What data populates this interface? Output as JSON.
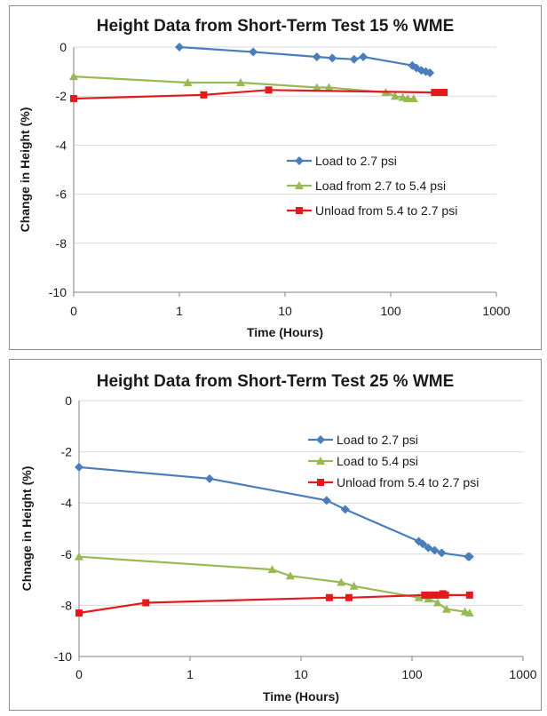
{
  "chart_data": [
    {
      "type": "line",
      "title": "Height Data from Short-Term Test 15 % WME",
      "xlabel": "Time (Hours)",
      "ylabel": "Change in Height (%)",
      "xscale": "log",
      "xlim": [
        0.1,
        1000
      ],
      "ylim": [
        -10,
        0
      ],
      "xticks": [
        0.1,
        1,
        10,
        100,
        1000
      ],
      "xtick_labels": [
        "0",
        "1",
        "10",
        "100",
        "1000"
      ],
      "yticks": [
        0,
        -2,
        -4,
        -6,
        -8,
        -10
      ],
      "ytick_labels": [
        "0",
        "-2",
        "-4",
        "-6",
        "-8",
        "-10"
      ],
      "grid": "horizontal",
      "legend_position": "right-middle",
      "series": [
        {
          "name": "Load to 2.7 psi",
          "color": "#4a7ebb",
          "marker": "diamond",
          "x": [
            1,
            5,
            20,
            28,
            45,
            55,
            160,
            175,
            195,
            215,
            235
          ],
          "y": [
            0,
            -0.2,
            -0.4,
            -0.45,
            -0.5,
            -0.4,
            -0.75,
            -0.85,
            -0.95,
            -1.0,
            -1.05
          ]
        },
        {
          "name": "Load from 2.7 to 5.4 psi",
          "color": "#98b954",
          "marker": "triangle",
          "x": [
            0.1,
            1.2,
            3.8,
            20,
            26,
            90,
            110,
            130,
            145,
            165
          ],
          "y": [
            -1.2,
            -1.45,
            -1.45,
            -1.65,
            -1.65,
            -1.85,
            -2.0,
            -2.05,
            -2.1,
            -2.1
          ]
        },
        {
          "name": "Unload from 5.4 to 2.7 psi",
          "color": "#e31a1c",
          "marker": "square",
          "x": [
            0.1,
            1.7,
            7,
            260,
            300,
            320
          ],
          "y": [
            -2.1,
            -1.95,
            -1.75,
            -1.85,
            -1.85,
            -1.85
          ]
        }
      ]
    },
    {
      "type": "line",
      "title": "Height Data from Short-Term Test 25 % WME",
      "xlabel": "Time (Hours)",
      "ylabel": "Chnage in Height (%)",
      "xscale": "log",
      "xlim": [
        0.1,
        1000
      ],
      "ylim": [
        -10,
        0
      ],
      "xticks": [
        0.1,
        1,
        10,
        100,
        1000
      ],
      "xtick_labels": [
        "0",
        "1",
        "10",
        "100",
        "1000"
      ],
      "yticks": [
        0,
        -2,
        -4,
        -6,
        -8,
        -10
      ],
      "ytick_labels": [
        "0",
        "-2",
        "-4",
        "-6",
        "-8",
        "-10"
      ],
      "grid": "horizontal",
      "legend_position": "top-right",
      "series": [
        {
          "name": "Load to 2.7 psi",
          "color": "#4a7ebb",
          "marker": "diamond",
          "x": [
            0.1,
            1.5,
            17,
            25,
            115,
            125,
            140,
            160,
            185,
            320,
            330
          ],
          "y": [
            -2.6,
            -3.05,
            -3.9,
            -4.25,
            -5.5,
            -5.6,
            -5.75,
            -5.85,
            -5.95,
            -6.1,
            -6.1
          ]
        },
        {
          "name": "Load to 5.4 psi",
          "color": "#98b954",
          "marker": "triangle",
          "x": [
            0.1,
            5.5,
            8,
            23,
            30,
            115,
            140,
            170,
            205,
            300,
            330
          ],
          "y": [
            -6.1,
            -6.6,
            -6.85,
            -7.1,
            -7.25,
            -7.7,
            -7.75,
            -7.9,
            -8.15,
            -8.25,
            -8.3
          ]
        },
        {
          "name": "Unload from 5.4 to 2.7 psi",
          "color": "#e31a1c",
          "marker": "square",
          "x": [
            0.1,
            0.4,
            18,
            27,
            130,
            145,
            160,
            175,
            190,
            200,
            330
          ],
          "y": [
            -8.3,
            -7.9,
            -7.7,
            -7.7,
            -7.6,
            -7.6,
            -7.6,
            -7.6,
            -7.55,
            -7.6,
            -7.6
          ]
        }
      ]
    }
  ]
}
